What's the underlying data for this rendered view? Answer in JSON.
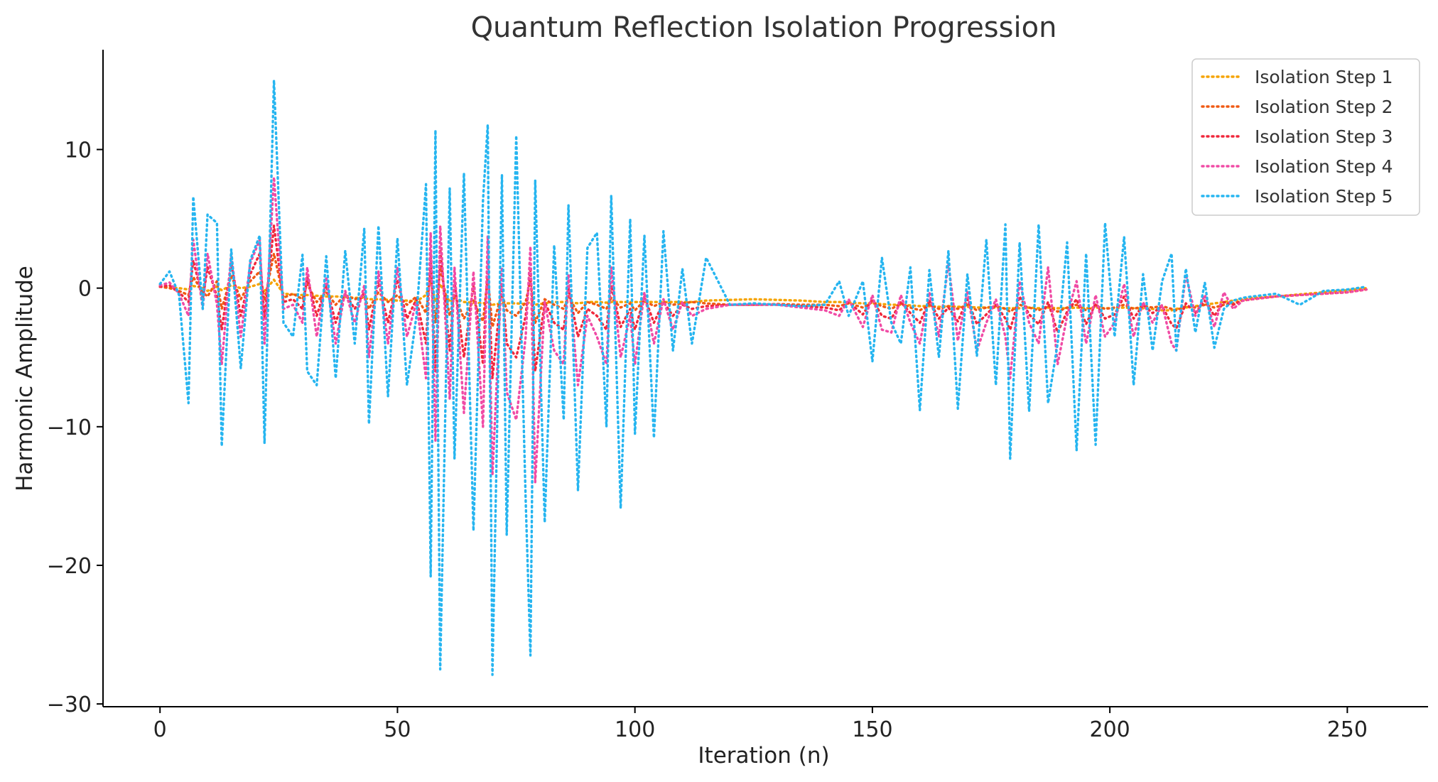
{
  "chart_data": {
    "type": "line",
    "title": "Quantum Reflection Isolation Progression",
    "xlabel": "Iteration (n)",
    "ylabel": "Harmonic Amplitude",
    "xlim": [
      -12,
      267
    ],
    "ylim": [
      -30.2,
      17.2
    ],
    "x_ticks": [
      0,
      50,
      100,
      150,
      200,
      250
    ],
    "y_ticks": [
      -30,
      -20,
      -10,
      0,
      10
    ],
    "x_tick_labels": [
      "0",
      "50",
      "100",
      "150",
      "200",
      "250"
    ],
    "y_tick_labels": [
      "−30",
      "−20",
      "−10",
      "0",
      "10"
    ],
    "grid": false,
    "legend_position": "top-right",
    "x": [
      0,
      2,
      4,
      6,
      7,
      9,
      10,
      12,
      13,
      15,
      17,
      19,
      21,
      22,
      24,
      26,
      28,
      30,
      31,
      33,
      35,
      37,
      39,
      41,
      43,
      44,
      46,
      48,
      50,
      52,
      54,
      56,
      57,
      58,
      59,
      61,
      62,
      64,
      66,
      68,
      69,
      70,
      72,
      73,
      75,
      77,
      78,
      79,
      81,
      83,
      85,
      86,
      88,
      90,
      92,
      94,
      95,
      97,
      99,
      100,
      102,
      104,
      106,
      108,
      110,
      112,
      115,
      120,
      125,
      130,
      135,
      140,
      143,
      145,
      148,
      150,
      152,
      154,
      156,
      158,
      160,
      162,
      164,
      166,
      168,
      170,
      172,
      174,
      176,
      178,
      179,
      181,
      183,
      185,
      187,
      189,
      191,
      193,
      195,
      197,
      199,
      201,
      203,
      205,
      207,
      209,
      211,
      213,
      214,
      216,
      218,
      220,
      222,
      224,
      226,
      228,
      230,
      235,
      240,
      245,
      250,
      254
    ],
    "series": [
      {
        "name": "Isolation Step 1",
        "color": "#f5a300",
        "values": [
          0.1,
          0.05,
          0.0,
          -0.1,
          0.15,
          0.05,
          -0.2,
          0.1,
          -0.15,
          0.2,
          0.0,
          0.1,
          0.3,
          -0.2,
          0.6,
          -0.4,
          -0.45,
          -0.5,
          -0.5,
          -0.55,
          -0.6,
          -0.6,
          -0.65,
          -0.7,
          -0.7,
          -0.8,
          -0.8,
          -0.85,
          -0.9,
          -0.9,
          -0.95,
          -0.5,
          0.5,
          -1.0,
          0.3,
          -1.0,
          -0.7,
          -1.0,
          -1.05,
          -1.1,
          -1.0,
          -1.2,
          -1.1,
          -1.1,
          -1.1,
          -1.15,
          -1.0,
          -1.2,
          -1.1,
          -1.0,
          -1.0,
          -1.0,
          -1.1,
          -1.0,
          -1.0,
          -1.05,
          -1.0,
          -1.0,
          -1.0,
          -1.0,
          -1.0,
          -1.0,
          -1.0,
          -1.0,
          -1.0,
          -1.0,
          -0.9,
          -0.85,
          -0.8,
          -0.85,
          -0.9,
          -1.0,
          -1.0,
          -1.05,
          -1.1,
          -1.1,
          -1.15,
          -1.2,
          -1.2,
          -1.25,
          -1.3,
          -1.3,
          -1.35,
          -1.3,
          -1.35,
          -1.35,
          -1.4,
          -1.4,
          -1.4,
          -1.45,
          -1.45,
          -1.45,
          -1.4,
          -1.45,
          -1.4,
          -1.45,
          -1.45,
          -1.4,
          -1.45,
          -1.4,
          -1.45,
          -1.45,
          -1.4,
          -1.45,
          -1.45,
          -1.5,
          -1.6,
          -1.6,
          -1.5,
          -1.4,
          -1.3,
          -1.2,
          -1.1,
          -1.0,
          -0.9,
          -0.8,
          -0.7,
          -0.6,
          -0.45,
          -0.3,
          -0.15,
          0.0
        ]
      },
      {
        "name": "Isolation Step 2",
        "color": "#f05a14",
        "values": [
          0.1,
          0.0,
          -0.2,
          -0.5,
          0.8,
          -0.3,
          -0.6,
          0.5,
          -1.5,
          0.9,
          -0.8,
          0.5,
          1.2,
          -0.9,
          2.5,
          -0.7,
          -0.4,
          -0.8,
          0.3,
          -1.0,
          -0.3,
          -1.2,
          -0.5,
          -0.8,
          -0.6,
          -1.5,
          -0.3,
          -1.0,
          -0.5,
          -1.2,
          -0.6,
          -1.8,
          1.2,
          -2.5,
          1.5,
          -2.0,
          -0.5,
          -2.2,
          -0.9,
          -2.4,
          0.8,
          -2.8,
          -0.4,
          -1.6,
          -2.0,
          -1.0,
          0.6,
          -2.5,
          -0.8,
          -1.2,
          -1.5,
          -0.6,
          -1.8,
          -1.0,
          -1.2,
          -1.5,
          -0.7,
          -1.4,
          -1.1,
          -1.6,
          -0.9,
          -1.3,
          -1.0,
          -1.2,
          -1.1,
          -1.0,
          -1.1,
          -1.2,
          -1.2,
          -1.15,
          -1.2,
          -1.2,
          -1.3,
          -1.1,
          -1.4,
          -1.0,
          -1.3,
          -1.5,
          -1.1,
          -1.4,
          -1.6,
          -1.2,
          -1.5,
          -1.3,
          -1.5,
          -1.2,
          -1.6,
          -1.4,
          -1.3,
          -1.5,
          -1.7,
          -1.2,
          -1.4,
          -1.6,
          -1.3,
          -1.7,
          -1.4,
          -1.2,
          -1.6,
          -1.3,
          -1.5,
          -1.4,
          -1.2,
          -1.5,
          -1.3,
          -1.4,
          -1.3,
          -1.5,
          -1.6,
          -1.3,
          -1.4,
          -1.2,
          -1.4,
          -1.2,
          -1.1,
          -0.9,
          -0.8,
          -0.6,
          -0.5,
          -0.4,
          -0.3,
          -0.1
        ]
      },
      {
        "name": "Isolation Step 3",
        "color": "#f0283c",
        "values": [
          0.1,
          0.2,
          -0.3,
          -1.0,
          2.0,
          -0.8,
          1.5,
          -0.6,
          -3.0,
          1.8,
          -2.0,
          1.0,
          2.5,
          -2.2,
          4.5,
          -1.0,
          -0.8,
          -1.5,
          0.8,
          -2.0,
          0.2,
          -2.5,
          -0.4,
          -1.5,
          -0.3,
          -3.0,
          0.5,
          -2.5,
          0.6,
          -2.2,
          -0.8,
          -4.0,
          2.5,
          -6.0,
          2.8,
          -4.5,
          0.5,
          -5.0,
          0.3,
          -5.5,
          2.0,
          -6.5,
          0.2,
          -4.0,
          -5.0,
          -2.0,
          1.5,
          -6.0,
          -1.0,
          -2.5,
          -3.0,
          0.0,
          -3.5,
          -1.5,
          -2.0,
          -3.0,
          0.2,
          -2.8,
          -1.5,
          -3.0,
          -0.6,
          -2.5,
          -1.0,
          -2.0,
          -1.2,
          -1.5,
          -1.3,
          -1.2,
          -1.2,
          -1.2,
          -1.3,
          -1.4,
          -1.6,
          -1.0,
          -1.9,
          -0.8,
          -2.0,
          -2.2,
          -1.0,
          -1.8,
          -2.5,
          -0.9,
          -2.2,
          -1.4,
          -2.4,
          -0.8,
          -2.6,
          -1.9,
          -1.2,
          -2.2,
          -3.0,
          -0.6,
          -1.9,
          -2.6,
          -1.0,
          -3.2,
          -1.7,
          -0.8,
          -2.6,
          -1.1,
          -2.2,
          -1.9,
          -0.6,
          -2.2,
          -1.2,
          -1.8,
          -1.3,
          -2.6,
          -2.9,
          -1.1,
          -1.8,
          -0.9,
          -2.0,
          -1.0,
          -1.2,
          -0.9,
          -0.8,
          -0.6,
          -0.5,
          -0.4,
          -0.3,
          -0.1
        ]
      },
      {
        "name": "Isolation Step 4",
        "color": "#f04ba5",
        "values": [
          0.2,
          0.4,
          -0.4,
          -2.0,
          3.5,
          -1.5,
          2.5,
          -1.2,
          -5.5,
          2.5,
          -3.5,
          1.8,
          3.5,
          -4.0,
          8.0,
          -1.5,
          -1.2,
          -2.5,
          1.5,
          -3.5,
          0.8,
          -4.0,
          -0.2,
          -2.5,
          0.2,
          -5.0,
          1.2,
          -4.0,
          1.5,
          -3.5,
          -1.0,
          -6.5,
          4.0,
          -11.0,
          4.5,
          -8.0,
          1.5,
          -9.0,
          1.2,
          -10.0,
          3.8,
          -13.5,
          1.5,
          -7.5,
          -9.5,
          -3.5,
          3.0,
          -14.0,
          -1.0,
          -4.5,
          -5.5,
          1.0,
          -7.0,
          -2.0,
          -3.5,
          -5.5,
          1.5,
          -5.0,
          -2.0,
          -5.5,
          -0.3,
          -4.0,
          -0.8,
          -3.0,
          -1.0,
          -2.0,
          -1.5,
          -1.2,
          -1.2,
          -1.2,
          -1.4,
          -1.6,
          -2.0,
          -0.8,
          -2.8,
          -0.5,
          -3.0,
          -3.2,
          -0.5,
          -2.5,
          -4.0,
          -0.3,
          -3.5,
          1.8,
          -3.8,
          -0.2,
          -4.5,
          -2.5,
          -0.8,
          -3.5,
          -6.5,
          0.5,
          -2.5,
          -4.0,
          1.5,
          -5.5,
          -2.0,
          0.5,
          -4.0,
          -0.5,
          -3.5,
          -2.5,
          0.3,
          -3.5,
          -1.0,
          -2.5,
          -1.2,
          -4.0,
          -4.5,
          1.0,
          -2.0,
          -0.5,
          -2.8,
          -0.3,
          -1.5,
          -0.9,
          -0.8,
          -0.6,
          -0.5,
          -0.4,
          -0.3,
          -0.1
        ]
      },
      {
        "name": "Isolation Step 5",
        "color": "#26b5f0",
        "values": [
          0.3,
          1.2,
          -0.5,
          -8.3,
          6.6,
          -1.5,
          5.3,
          4.7,
          -11.4,
          2.8,
          -5.8,
          2.0,
          3.8,
          -11.2,
          15.0,
          -2.5,
          -3.5,
          2.4,
          -6.0,
          -7.0,
          2.3,
          -6.5,
          2.7,
          -4.0,
          4.3,
          -9.8,
          4.5,
          -7.8,
          3.6,
          -7.0,
          -2.0,
          7.5,
          -20.8,
          11.4,
          -27.5,
          7.2,
          -12.3,
          8.3,
          -17.5,
          6.3,
          11.8,
          -27.9,
          8.2,
          -17.8,
          11.0,
          -15.3,
          -26.5,
          7.8,
          -16.9,
          3.1,
          -9.5,
          6.0,
          -14.6,
          2.9,
          4.0,
          -10.0,
          6.7,
          -15.9,
          5.0,
          -10.5,
          3.8,
          -10.8,
          4.1,
          -4.5,
          1.4,
          -4.0,
          2.2,
          -1.2,
          -1.1,
          -1.2,
          -1.3,
          -1.2,
          0.5,
          -2.0,
          0.5,
          -5.3,
          2.2,
          -2.5,
          -4.0,
          1.5,
          -8.8,
          1.3,
          -5.0,
          2.7,
          -8.7,
          1.0,
          -4.9,
          3.5,
          -7.0,
          4.6,
          -12.3,
          3.3,
          -8.9,
          4.6,
          -8.3,
          -4.0,
          3.3,
          -11.7,
          2.5,
          -11.3,
          4.7,
          -3.5,
          3.7,
          -7.0,
          1.0,
          -4.5,
          0.5,
          2.5,
          -4.5,
          1.4,
          -3.2,
          0.4,
          -4.3,
          -1.5,
          -0.9,
          -0.7,
          -0.6,
          -0.4,
          -1.2,
          -0.2,
          -0.1,
          0.1
        ]
      }
    ]
  }
}
